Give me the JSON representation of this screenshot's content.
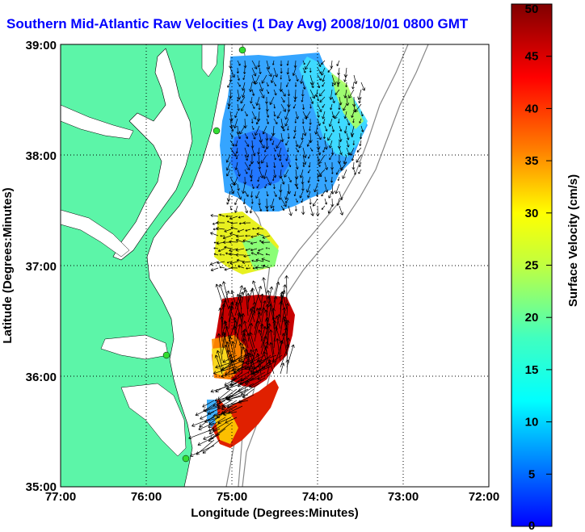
{
  "title": "Southern Mid-Atlantic Raw Velocities (1 Day Avg) 2008/10/01 0800 GMT",
  "xaxis": {
    "label": "Longitude (Degrees:Minutes)",
    "ticks": [
      "77:00",
      "76:00",
      "75:00",
      "74:00",
      "73:00",
      "72:00"
    ]
  },
  "yaxis": {
    "label": "Latitude (Degrees:Minutes)",
    "ticks": [
      "39:00",
      "38:00",
      "37:00",
      "36:00",
      "35:00"
    ]
  },
  "colorbar": {
    "label": "Surface Velocity (cm/s)",
    "ticks": [
      "50",
      "45",
      "40",
      "35",
      "30",
      "25",
      "20",
      "15",
      "10",
      "5",
      "0"
    ],
    "min": 0,
    "max": 50
  },
  "colors": {
    "land": "#5cf5a8",
    "title": "#0000ff",
    "station": "#33dd33"
  }
}
